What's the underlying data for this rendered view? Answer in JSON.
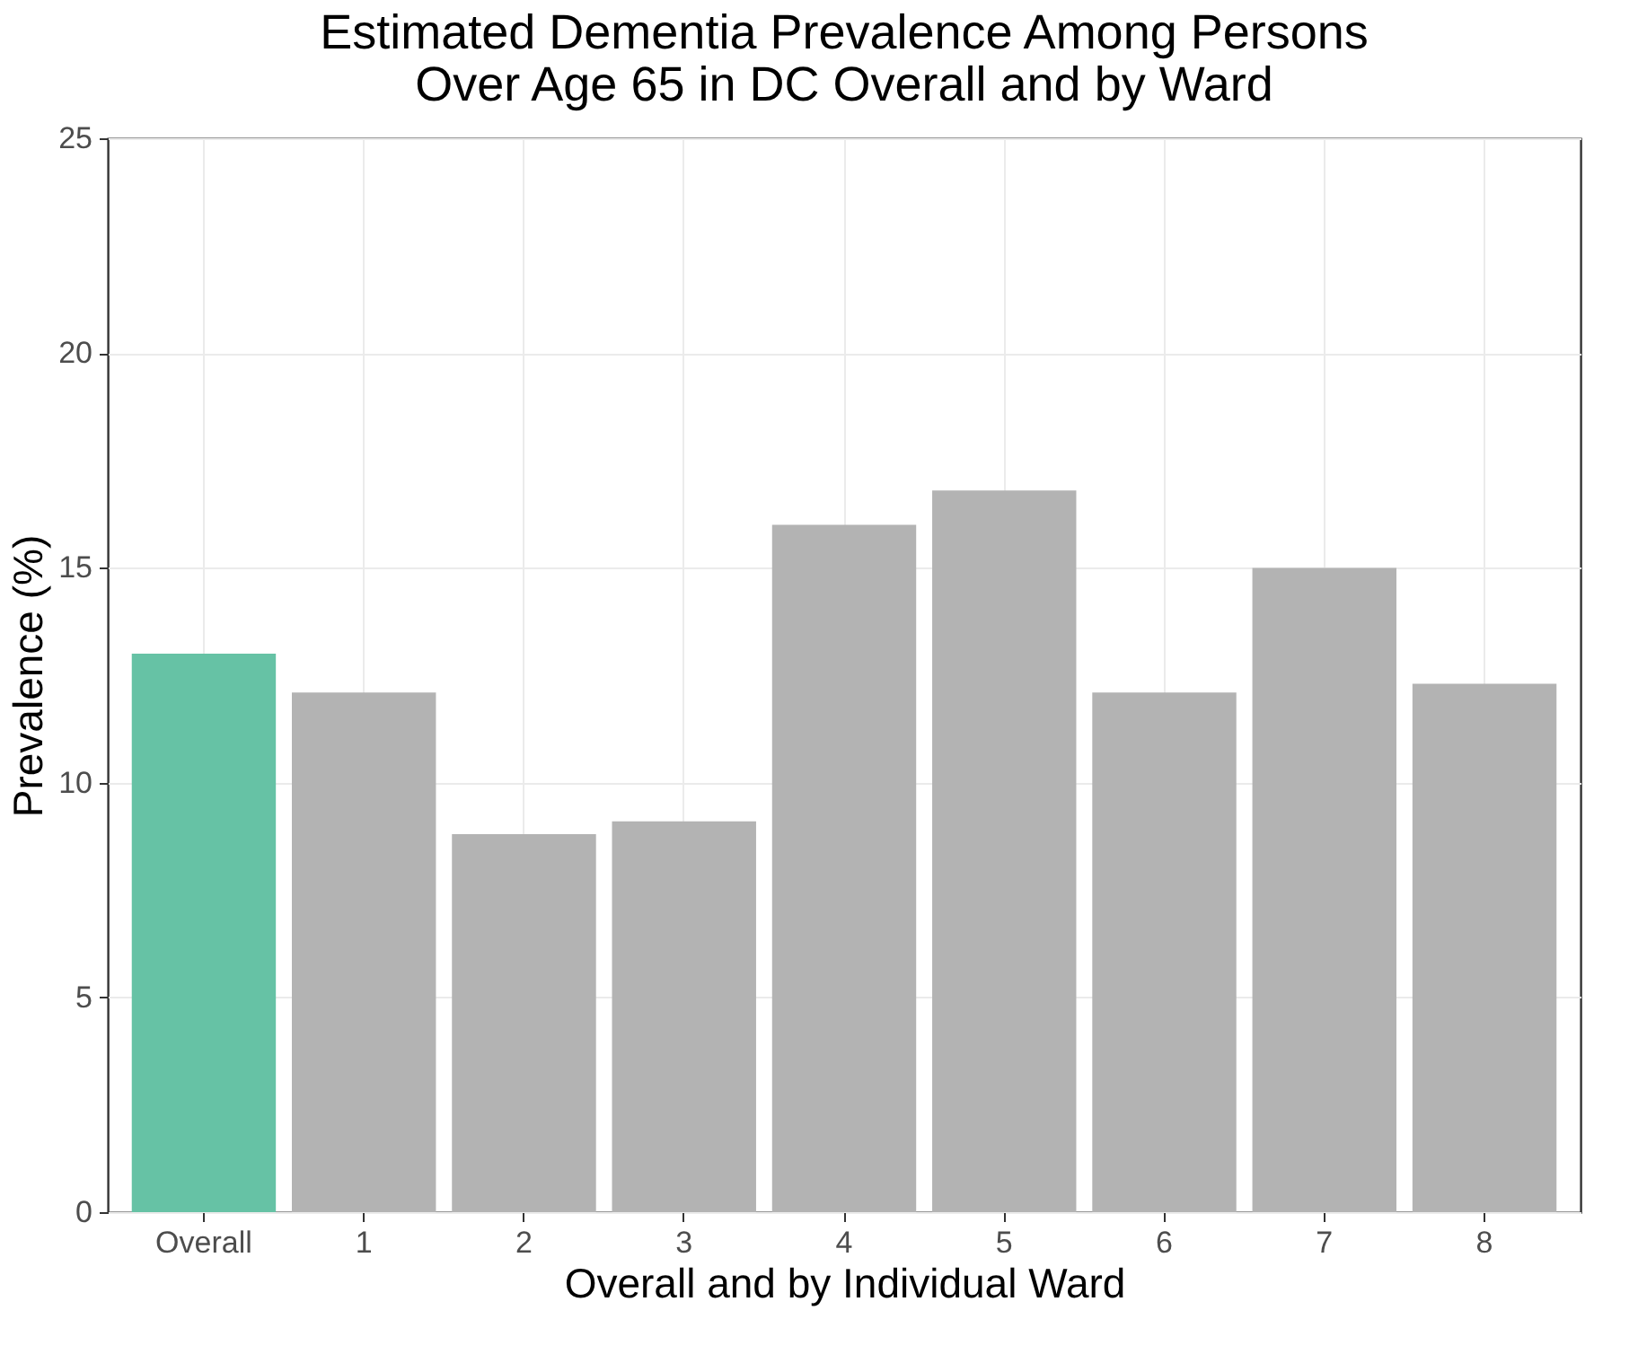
{
  "chart_data": {
    "type": "bar",
    "title": [
      "Estimated Dementia Prevalence Among Persons",
      "Over Age 65 in DC Overall and by Ward"
    ],
    "xlabel": "Overall and by Individual Ward",
    "ylabel": "Prevalence (%)",
    "categories": [
      "Overall",
      "1",
      "2",
      "3",
      "4",
      "5",
      "6",
      "7",
      "8"
    ],
    "values": [
      13.0,
      12.1,
      8.8,
      9.1,
      16.0,
      16.8,
      12.1,
      15.0,
      12.3
    ],
    "colors": [
      "#66c2a5",
      "#b3b3b3",
      "#b3b3b3",
      "#b3b3b3",
      "#b3b3b3",
      "#b3b3b3",
      "#b3b3b3",
      "#b3b3b3",
      "#b3b3b3"
    ],
    "ylim": [
      0,
      25
    ],
    "yticks": [
      0,
      5,
      10,
      15,
      20,
      25
    ],
    "grid": true
  }
}
